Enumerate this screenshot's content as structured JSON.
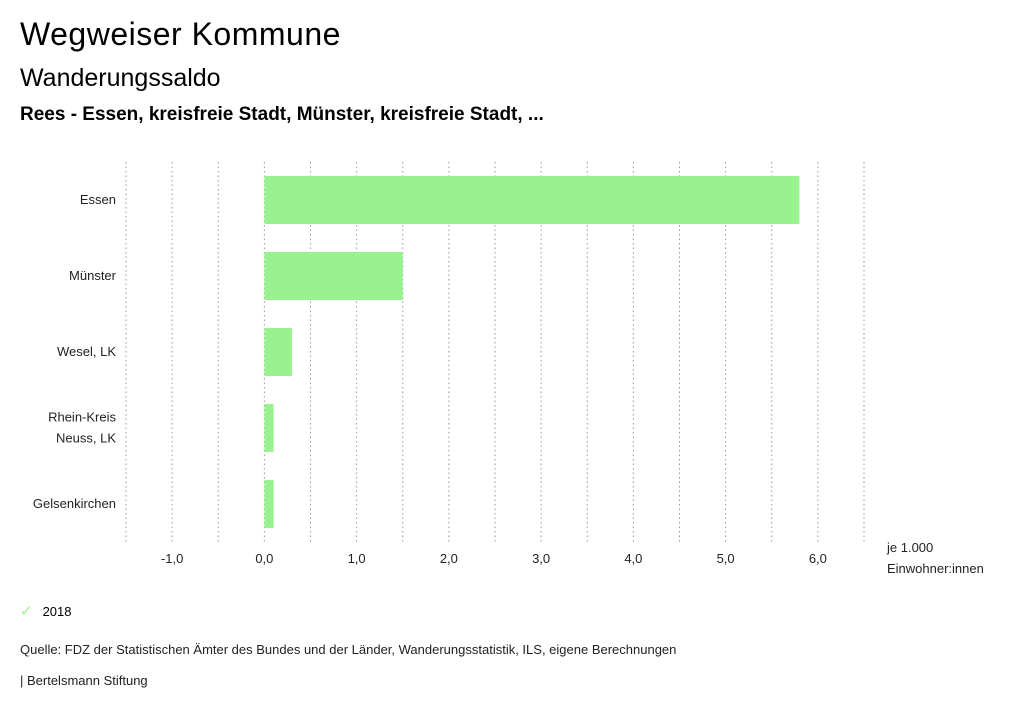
{
  "header": {
    "title": "Wegweiser Kommune",
    "subtitle": "Wanderungssaldo",
    "subtitle2": "Rees - Essen, kreisfreie Stadt, Münster, kreisfreie Stadt, ..."
  },
  "chart_data": {
    "type": "bar",
    "orientation": "horizontal",
    "categories": [
      "Essen",
      "Münster",
      "Wesel, LK",
      "Rhein-Kreis Neuss, LK",
      "Gelsenkirchen"
    ],
    "category_lines": [
      [
        "Essen"
      ],
      [
        "Münster"
      ],
      [
        "Wesel, LK"
      ],
      [
        "Rhein-Kreis",
        "Neuss, LK"
      ],
      [
        "Gelsenkirchen"
      ]
    ],
    "series": [
      {
        "name": "2018",
        "values": [
          5.8,
          1.5,
          0.3,
          0.1,
          0.1
        ],
        "color": "#99f28f"
      }
    ],
    "xlim": [
      -1.5,
      6.5
    ],
    "ticks": [
      -1.0,
      0.0,
      1.0,
      2.0,
      3.0,
      4.0,
      5.0,
      6.0
    ],
    "tick_labels": [
      "-1,0",
      "0,0",
      "1,0",
      "2,0",
      "3,0",
      "4,0",
      "5,0",
      "6,0"
    ],
    "gridlines": [
      -1.5,
      -1.0,
      -0.5,
      0.0,
      0.5,
      1.0,
      1.5,
      2.0,
      2.5,
      3.0,
      3.5,
      4.0,
      4.5,
      5.0,
      5.5,
      6.0,
      6.5
    ],
    "unit_label": [
      "je 1.000",
      "Einwohner:innen"
    ],
    "grid": true,
    "legend_position": "bottom-left"
  },
  "legend": {
    "label": "2018",
    "icon": "check-icon",
    "color": "#99f28f"
  },
  "footer": {
    "source": "Quelle: FDZ der Statistischen Ämter des Bundes und der Länder, Wanderungsstatistik, ILS, eigene Berechnungen",
    "brand": "| Bertelsmann Stiftung"
  }
}
